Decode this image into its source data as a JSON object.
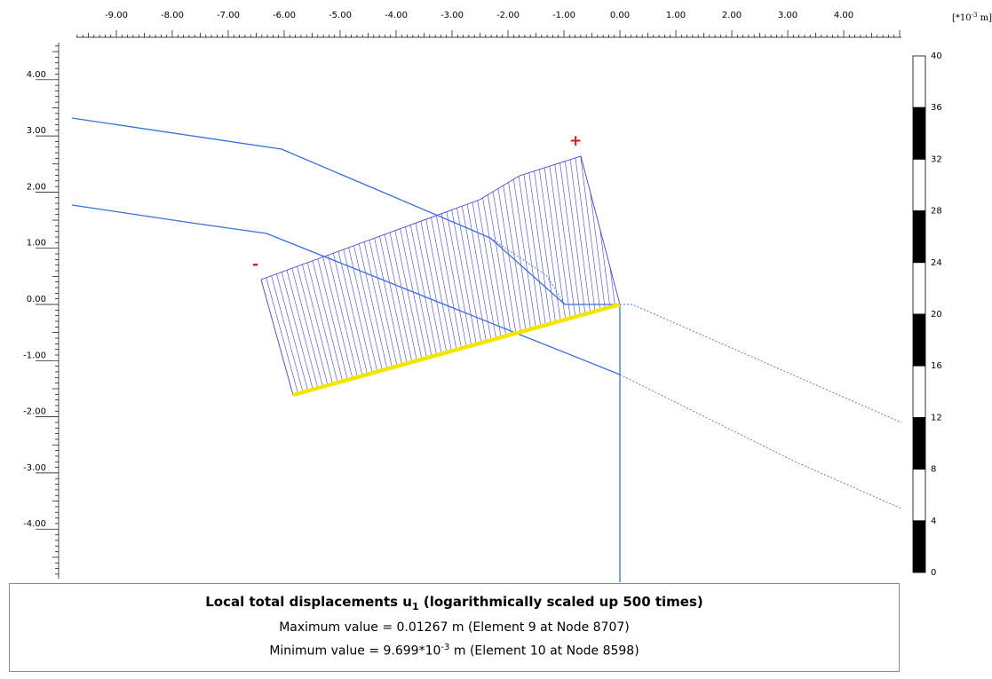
{
  "x_axis": {
    "ticks": [
      "-9.00",
      "-8.00",
      "-7.00",
      "-6.00",
      "-5.00",
      "-4.00",
      "-3.00",
      "-2.00",
      "-1.00",
      "0.00",
      "1.00",
      "2.00",
      "3.00",
      "4.00"
    ]
  },
  "y_axis": {
    "ticks": [
      "4.00",
      "3.00",
      "2.00",
      "1.00",
      "0.00",
      "-1.00",
      "-2.00",
      "-3.00",
      "-4.00"
    ]
  },
  "legend": {
    "unit_prefix": "[*10",
    "unit_exp": "-3",
    "unit_suffix": " m]",
    "ticks": [
      "40",
      "36",
      "32",
      "28",
      "24",
      "20",
      "16",
      "12",
      "8",
      "4",
      "0"
    ]
  },
  "signs": {
    "plus": "+",
    "minus": "-"
  },
  "colors": {
    "geometry_line": "#3a6fd8",
    "hatch": "#4444cc",
    "plate": "#f2e600",
    "sign": "#e8101a"
  },
  "info": {
    "title_main": "Local total displacements u",
    "title_sub": "1",
    "title_rest": " (logarithmically scaled up 500 times)",
    "max_line": "Maximum value = 0.01267 m (Element 9 at Node 8707)",
    "min_prefix": "Minimum value = 9.699*10",
    "min_exp": "-3",
    "min_suffix": " m (Element 10 at Node 8598)"
  }
}
